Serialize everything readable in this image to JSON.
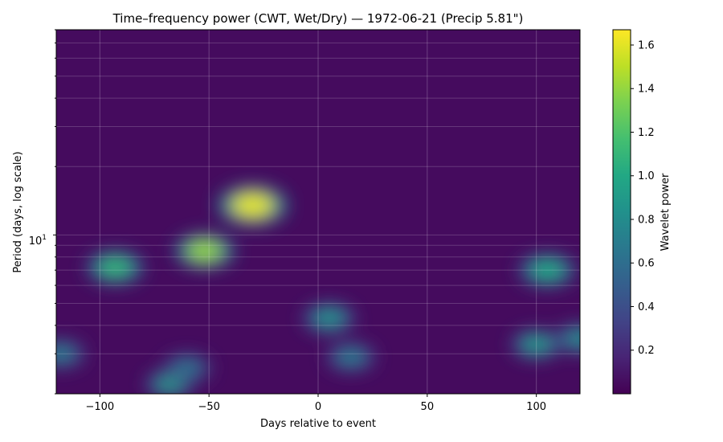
{
  "chart_data": {
    "type": "heatmap",
    "title": "Time–frequency power (CWT, Wet/Dry) — 1972-06-21  (Precip 5.81\")",
    "xlabel": "Days relative to event",
    "ylabel": "Period (days, log scale)",
    "xlim": [
      -120,
      120
    ],
    "ylim": [
      2,
      80
    ],
    "yscale": "log",
    "x_ticks": [
      -100,
      -50,
      0,
      50,
      100
    ],
    "y_tick_major_label": "10",
    "y_tick_major_exp": "1",
    "y_tick_major_value": 10,
    "grid": true,
    "colormap": "viridis",
    "colorbar": {
      "label": "Wavelet power",
      "range": [
        0.0,
        1.67
      ],
      "ticks": [
        "0.2",
        "0.4",
        "0.6",
        "0.8",
        "1.0",
        "1.2",
        "1.4",
        "1.6"
      ]
    },
    "hotspots": [
      {
        "x": -30,
        "period": 13.5,
        "power": 1.6
      },
      {
        "x": -52,
        "period": 8.5,
        "power": 1.4
      },
      {
        "x": -93,
        "period": 7.2,
        "power": 1.1
      },
      {
        "x": 105,
        "period": 7.0,
        "power": 1.0
      },
      {
        "x": 5,
        "period": 4.3,
        "power": 0.85
      },
      {
        "x": -68,
        "period": 2.2,
        "power": 0.9
      },
      {
        "x": 100,
        "period": 3.3,
        "power": 0.9
      },
      {
        "x": 120,
        "period": 3.5,
        "power": 0.8
      },
      {
        "x": -118,
        "period": 3.0,
        "power": 0.7
      },
      {
        "x": 15,
        "period": 2.9,
        "power": 0.7
      },
      {
        "x": -60,
        "period": 2.6,
        "power": 0.65
      }
    ],
    "background_power": 0.05
  }
}
